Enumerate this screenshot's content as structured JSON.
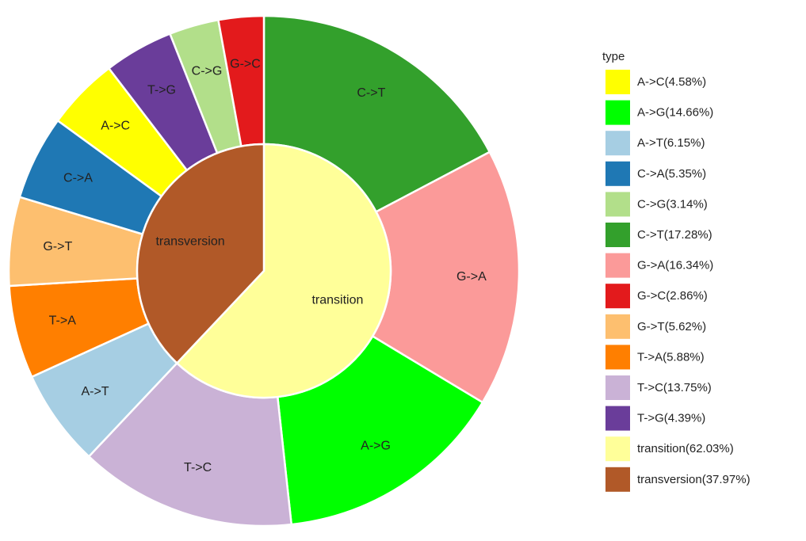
{
  "chart_data": {
    "type": "pie",
    "subtype": "nested-donut",
    "inner_ring": [
      {
        "label": "transition",
        "value": 62.03,
        "color": "#FFFF99"
      },
      {
        "label": "transversion",
        "value": 37.97,
        "color": "#B15928"
      }
    ],
    "outer_ring": [
      {
        "label": "C->T",
        "value": 17.28,
        "color": "#33A02C"
      },
      {
        "label": "G->A",
        "value": 16.34,
        "color": "#FB9A99"
      },
      {
        "label": "A->G",
        "value": 14.66,
        "color": "#00FF00"
      },
      {
        "label": "T->C",
        "value": 13.75,
        "color": "#CAB2D6"
      },
      {
        "label": "A->T",
        "value": 6.15,
        "color": "#A6CEE3"
      },
      {
        "label": "T->A",
        "value": 5.88,
        "color": "#FF7F00"
      },
      {
        "label": "G->T",
        "value": 5.62,
        "color": "#FDBF6F"
      },
      {
        "label": "C->A",
        "value": 5.35,
        "color": "#1F78B4"
      },
      {
        "label": "A->C",
        "value": 4.58,
        "color": "#FFFF00"
      },
      {
        "label": "T->G",
        "value": 4.39,
        "color": "#6A3D9A"
      },
      {
        "label": "C->G",
        "value": 3.14,
        "color": "#B2DF8A"
      },
      {
        "label": "G->C",
        "value": 2.86,
        "color": "#E31A1C"
      }
    ],
    "legend": {
      "title": "type",
      "placement": "right",
      "entries": [
        {
          "label": "A->C(4.58%)",
          "color": "#FFFF00"
        },
        {
          "label": "A->G(14.66%)",
          "color": "#00FF00"
        },
        {
          "label": "A->T(6.15%)",
          "color": "#A6CEE3"
        },
        {
          "label": "C->A(5.35%)",
          "color": "#1F78B4"
        },
        {
          "label": "C->G(3.14%)",
          "color": "#B2DF8A"
        },
        {
          "label": "C->T(17.28%)",
          "color": "#33A02C"
        },
        {
          "label": "G->A(16.34%)",
          "color": "#FB9A99"
        },
        {
          "label": "G->C(2.86%)",
          "color": "#E31A1C"
        },
        {
          "label": "G->T(5.62%)",
          "color": "#FDBF6F"
        },
        {
          "label": "T->A(5.88%)",
          "color": "#FF7F00"
        },
        {
          "label": "T->C(13.75%)",
          "color": "#CAB2D6"
        },
        {
          "label": "T->G(4.39%)",
          "color": "#6A3D9A"
        },
        {
          "label": "transition(62.03%)",
          "color": "#FFFF99"
        },
        {
          "label": "transversion(37.97%)",
          "color": "#B15928"
        }
      ]
    }
  }
}
